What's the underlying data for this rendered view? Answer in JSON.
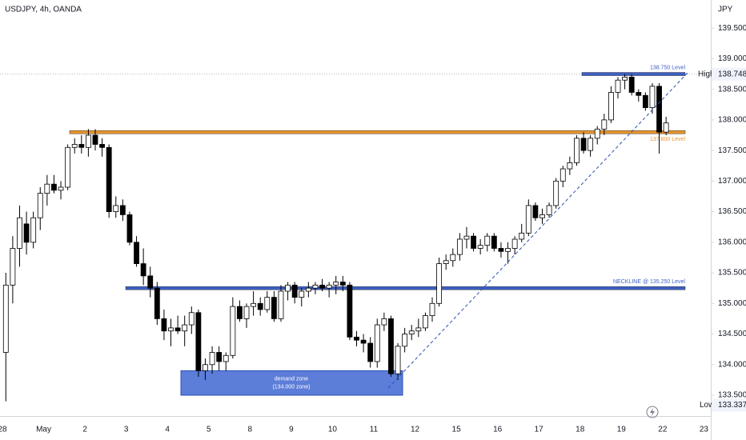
{
  "chart_data": {
    "type": "candlestick",
    "title": "USDJPY, 4h, OANDA",
    "currency": "JPY",
    "categories": [
      "28",
      null,
      null,
      null,
      null,
      null,
      "May",
      null,
      null,
      null,
      null,
      null,
      "2",
      null,
      null,
      null,
      null,
      null,
      "3",
      null,
      null,
      null,
      null,
      null,
      "4",
      null,
      null,
      null,
      null,
      null,
      "5",
      null,
      null,
      null,
      null,
      null,
      "8",
      null,
      null,
      null,
      null,
      null,
      "9",
      null,
      null,
      null,
      null,
      null,
      "10",
      null,
      null,
      null,
      null,
      null,
      "11",
      null,
      null,
      null,
      null,
      null,
      "12",
      null,
      null,
      null,
      null,
      null,
      "15",
      null,
      null,
      null,
      null,
      null,
      "16",
      null,
      null,
      null,
      null,
      null,
      "17",
      null,
      null,
      null,
      null,
      null,
      "18",
      null,
      null,
      null,
      null,
      null,
      "19",
      null,
      null,
      null,
      null,
      null,
      "22",
      null,
      null,
      null,
      null,
      null,
      "23"
    ],
    "open": [
      134.2,
      135.3,
      135.9,
      136.3,
      136.0,
      136.4,
      136.8,
      136.95,
      136.85,
      136.9,
      137.55,
      137.6,
      137.55,
      137.75,
      137.6,
      137.55,
      136.5,
      136.6,
      136.45,
      136.0,
      135.65,
      135.45,
      135.25,
      134.75,
      134.55,
      134.6,
      134.55,
      134.65,
      134.85,
      133.9,
      134.0,
      134.2,
      134.05,
      134.15,
      134.95,
      134.75,
      134.95,
      135.0,
      134.9,
      135.1,
      134.75,
      135.2,
      135.3,
      135.1,
      135.2,
      135.25,
      135.3,
      135.25,
      135.3,
      135.35,
      135.3,
      134.45,
      134.4,
      134.35,
      134.05,
      134.65,
      134.75,
      133.85,
      134.3,
      134.5,
      134.55,
      134.6,
      134.8,
      135.0,
      135.65,
      135.7,
      135.8,
      136.05,
      136.1,
      135.9,
      135.95,
      136.1,
      135.9,
      135.85,
      135.9,
      136.05,
      136.15,
      136.6,
      136.4,
      136.45,
      136.6,
      137.0,
      137.2,
      137.3,
      137.7,
      137.5,
      137.7,
      137.85,
      138.0,
      138.45,
      138.65,
      138.7,
      138.45,
      138.4,
      138.2,
      138.55,
      137.8,
      null,
      null,
      null,
      null,
      null,
      null
    ],
    "high": [
      135.5,
      136.1,
      136.6,
      136.5,
      136.5,
      136.9,
      137.1,
      137.1,
      137.0,
      137.6,
      137.7,
      137.75,
      137.85,
      137.85,
      137.7,
      137.6,
      136.75,
      136.7,
      136.5,
      136.1,
      135.9,
      135.6,
      135.35,
      134.9,
      134.75,
      134.8,
      134.8,
      134.95,
      134.9,
      134.1,
      134.3,
      134.3,
      134.2,
      135.1,
      135.05,
      135.0,
      135.2,
      135.1,
      135.2,
      135.2,
      135.3,
      135.35,
      135.35,
      135.25,
      135.35,
      135.35,
      135.4,
      135.35,
      135.45,
      135.45,
      135.35,
      134.55,
      134.5,
      134.45,
      134.75,
      134.85,
      134.8,
      134.35,
      134.6,
      134.65,
      134.75,
      134.85,
      135.1,
      135.75,
      135.8,
      135.9,
      136.15,
      136.25,
      136.15,
      136.05,
      136.15,
      136.15,
      136.0,
      136.0,
      136.1,
      136.3,
      136.7,
      136.65,
      136.55,
      136.65,
      137.05,
      137.25,
      137.4,
      137.75,
      137.8,
      137.75,
      137.9,
      138.1,
      138.55,
      138.7,
      138.75,
      138.75,
      138.5,
      138.45,
      138.6,
      138.6,
      138.05,
      null,
      null,
      null,
      null,
      null,
      null
    ],
    "low": [
      133.4,
      135.0,
      135.6,
      135.8,
      135.9,
      136.2,
      136.6,
      136.8,
      136.7,
      136.85,
      137.45,
      137.45,
      137.4,
      137.5,
      137.4,
      136.4,
      136.4,
      136.35,
      135.95,
      135.6,
      135.3,
      135.1,
      134.65,
      134.4,
      134.3,
      134.5,
      134.3,
      134.5,
      133.8,
      133.75,
      133.85,
      133.9,
      133.9,
      134.1,
      134.7,
      134.6,
      134.8,
      134.8,
      134.85,
      134.7,
      134.7,
      135.05,
      135.0,
      134.95,
      135.1,
      135.15,
      135.2,
      135.1,
      135.15,
      135.2,
      134.4,
      134.3,
      134.2,
      133.95,
      133.95,
      134.55,
      133.8,
      133.75,
      134.2,
      134.4,
      134.45,
      134.55,
      134.7,
      134.95,
      135.55,
      135.6,
      135.7,
      135.9,
      135.85,
      135.8,
      135.85,
      135.85,
      135.75,
      135.65,
      135.8,
      136.0,
      136.1,
      136.35,
      136.3,
      136.4,
      136.55,
      136.9,
      137.1,
      137.25,
      137.45,
      137.4,
      137.6,
      137.75,
      137.95,
      138.35,
      138.5,
      138.4,
      138.3,
      138.15,
      138.1,
      137.45,
      137.75,
      null,
      null,
      null,
      null,
      null,
      null
    ],
    "close": [
      135.3,
      135.9,
      136.4,
      136.0,
      136.4,
      136.8,
      136.95,
      136.85,
      136.9,
      137.55,
      137.6,
      137.55,
      137.75,
      137.6,
      137.55,
      136.5,
      136.6,
      136.45,
      136.0,
      135.65,
      135.45,
      135.25,
      134.75,
      134.55,
      134.6,
      134.55,
      134.65,
      134.85,
      133.9,
      134.0,
      134.2,
      134.05,
      134.15,
      134.95,
      134.75,
      134.95,
      135.0,
      134.9,
      135.1,
      134.75,
      135.2,
      135.3,
      135.1,
      135.2,
      135.25,
      135.3,
      135.25,
      135.3,
      135.35,
      135.3,
      134.45,
      134.4,
      134.35,
      134.05,
      134.65,
      134.75,
      133.85,
      134.3,
      134.5,
      134.55,
      134.6,
      134.8,
      135.0,
      135.65,
      135.7,
      135.8,
      136.05,
      136.1,
      135.9,
      135.95,
      136.1,
      135.9,
      135.85,
      135.9,
      136.05,
      136.15,
      136.6,
      136.4,
      136.45,
      136.6,
      137.0,
      137.2,
      137.3,
      137.7,
      137.5,
      137.7,
      137.85,
      138.0,
      138.45,
      138.65,
      138.7,
      138.45,
      138.4,
      138.2,
      138.55,
      137.8,
      137.95,
      null,
      null,
      null,
      null,
      null,
      null
    ],
    "up_color": "#ffffff",
    "down_color": "#000000",
    "ylim": [
      133.16,
      139.96
    ],
    "yticks": [
      {
        "value": 133.5,
        "label": "133.500"
      },
      {
        "value": 134,
        "label": "134.000"
      },
      {
        "value": 134.5,
        "label": "134.500"
      },
      {
        "value": 135,
        "label": "135.000"
      },
      {
        "value": 135.5,
        "label": "135.500"
      },
      {
        "value": 136,
        "label": "136.000"
      },
      {
        "value": 136.5,
        "label": "136.500"
      },
      {
        "value": 137,
        "label": "137.000"
      },
      {
        "value": 137.5,
        "label": "137.500"
      },
      {
        "value": 138,
        "label": "138.000"
      },
      {
        "value": 138.5,
        "label": "138.500"
      },
      {
        "value": 139,
        "label": "139.000"
      },
      {
        "value": 139.5,
        "label": "139.500"
      }
    ],
    "levels": [
      {
        "value": 138.75,
        "label": "138.750 Level",
        "color": "#3d5fc4"
      },
      {
        "value": 137.8,
        "label": "137.800 Level",
        "color": "#e8952e"
      },
      {
        "value": 135.25,
        "label": "NECKLINE @ 135.250 Level",
        "color": "#3d5fc4"
      }
    ],
    "zone": {
      "range": [
        133.5,
        133.9
      ],
      "label": "demand zone",
      "sublabel": "(134.000 zone)",
      "color": "#4a6fd4"
    },
    "high_marker": {
      "label": "High",
      "value": 138.748
    },
    "low_marker": {
      "label": "Low",
      "value": 133.337
    }
  }
}
